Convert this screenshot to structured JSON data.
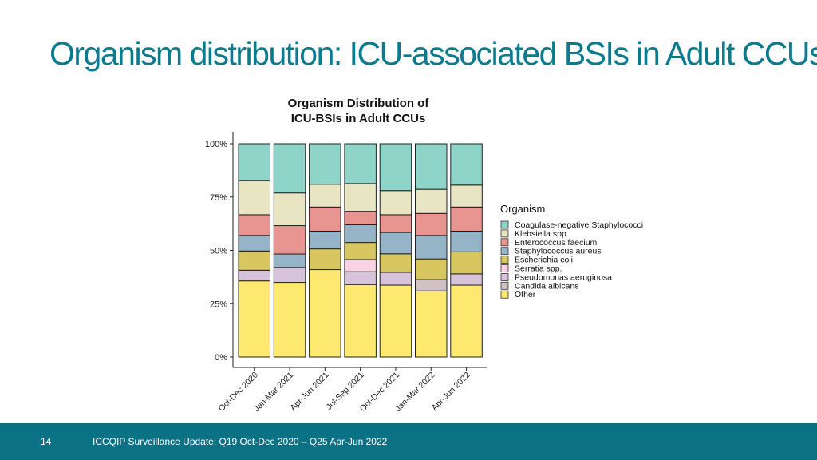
{
  "slide": {
    "title": "Organism distribution: ICU-associated BSIs in Adult CCUs",
    "page_number": "14",
    "footer_text": "ICCQIP Surveillance Update: Q19 Oct-Dec 2020 – Q25 Apr-Jun 2022"
  },
  "colors": {
    "title": "#0a7b8f",
    "footer_bg": "#0b7285"
  },
  "chart_data": {
    "type": "bar",
    "stacked": true,
    "percent": true,
    "title_lines": [
      "Organism Distribution of",
      "ICU-BSIs in Adult CCUs"
    ],
    "legend_title": "Organism",
    "legend_position": "right",
    "categories": [
      "Oct-Dec 2020",
      "Jan-Mar 2021",
      "Apr-Jun 2021",
      "Jul-Sep 2021",
      "Oct-Dec 2021",
      "Jan-Mar 2022",
      "Apr-Jun 2022"
    ],
    "y_ticks": [
      "0%",
      "25%",
      "50%",
      "75%",
      "100%"
    ],
    "ylim": [
      0,
      100
    ],
    "grid": false,
    "series": [
      {
        "name": "Other",
        "color": "#fde96f",
        "values": [
          35.7,
          35.0,
          41.0,
          34.0,
          33.7,
          31.0,
          33.7
        ]
      },
      {
        "name": "Candida albicans",
        "color": "#d0c2c4",
        "values": [
          0,
          0,
          0,
          0,
          0,
          5.3,
          0
        ]
      },
      {
        "name": "Pseudomonas aeruginosa",
        "color": "#d8c3dd",
        "values": [
          5.0,
          7.0,
          0,
          6.0,
          6.0,
          0,
          5.3
        ]
      },
      {
        "name": "Serratia spp.",
        "color": "#f9d3e3",
        "values": [
          0,
          0,
          0,
          5.7,
          0,
          0,
          0
        ]
      },
      {
        "name": "Escherichia coli",
        "color": "#d8c760",
        "values": [
          9.0,
          0,
          9.7,
          8.0,
          8.7,
          9.7,
          10.3
        ]
      },
      {
        "name": "Staphylococcus aureus",
        "color": "#96b4c8",
        "values": [
          7.3,
          6.3,
          8.3,
          8.3,
          10.0,
          11.0,
          9.7
        ]
      },
      {
        "name": "Enterococcus faecium",
        "color": "#e89490",
        "values": [
          9.7,
          13.3,
          11.3,
          6.3,
          8.3,
          10.3,
          11.3
        ]
      },
      {
        "name": "Klebsiella spp.",
        "color": "#e8e5c2",
        "values": [
          16.0,
          15.3,
          10.7,
          13.0,
          11.3,
          11.3,
          10.3
        ]
      },
      {
        "name": "Coagulase-negative Staphylococci",
        "color": "#8fd4c8",
        "values": [
          17.3,
          23.1,
          19.0,
          18.7,
          22.0,
          21.4,
          19.4
        ]
      }
    ],
    "legend_order": [
      "Coagulase-negative Staphylococci",
      "Klebsiella spp.",
      "Enterococcus faecium",
      "Staphylococcus aureus",
      "Escherichia coli",
      "Serratia spp.",
      "Pseudomonas aeruginosa",
      "Candida albicans",
      "Other"
    ]
  }
}
